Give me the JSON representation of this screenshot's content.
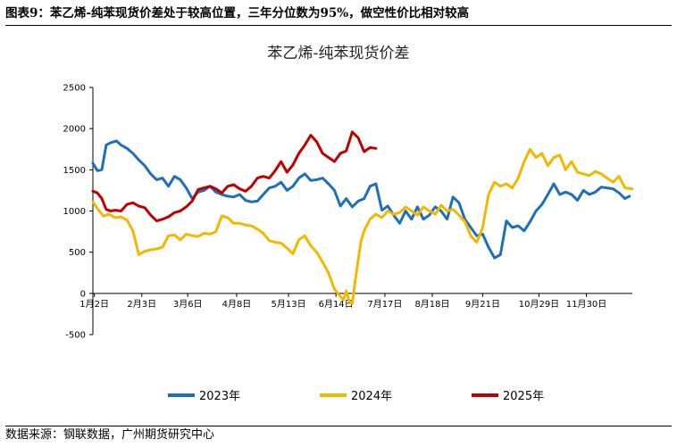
{
  "caption": "图表9：苯乙烯-纯苯现货价差处于较高位置，三年分位数为95%，做空性价比相对较高",
  "source": "数据来源：钢联数据，广州期货研究中心",
  "chart_data": {
    "type": "line",
    "title": "苯乙烯-纯苯现货价差",
    "xlabel": "",
    "ylabel": "",
    "ylim": [
      -500,
      2500
    ],
    "yticks": [
      -500,
      0,
      500,
      1000,
      1500,
      2000,
      2500
    ],
    "xlim": [
      1,
      365
    ],
    "x_tick_labels": [
      "1月2日",
      "2月3日",
      "3月6日",
      "4月8日",
      "5月13日",
      "6月14日",
      "7月17日",
      "8月18日",
      "9月21日",
      "10月29日",
      "11月30日"
    ],
    "x_tick_days": [
      2,
      34,
      65,
      98,
      133,
      165,
      198,
      230,
      264,
      302,
      334
    ],
    "grid": false,
    "legend_position": "bottom",
    "series": [
      {
        "name": "2023年",
        "color": "#1F6FB8",
        "x": [
          1,
          4,
          7,
          10,
          13,
          17,
          20,
          24,
          28,
          32,
          36,
          40,
          44,
          48,
          52,
          56,
          60,
          64,
          68,
          72,
          76,
          80,
          84,
          88,
          92,
          96,
          100,
          104,
          108,
          112,
          116,
          120,
          124,
          128,
          132,
          136,
          140,
          144,
          148,
          152,
          156,
          160,
          164,
          168,
          172,
          176,
          180,
          184,
          188,
          192,
          196,
          200,
          204,
          208,
          212,
          216,
          220,
          224,
          228,
          232,
          236,
          240,
          244,
          248,
          252,
          256,
          260,
          264,
          268,
          272,
          276,
          280,
          284,
          288,
          292,
          296,
          300,
          304,
          308,
          312,
          316,
          320,
          324,
          328,
          332,
          336,
          340,
          344,
          348,
          352,
          356,
          360,
          363
        ],
        "y": [
          1580,
          1490,
          1500,
          1800,
          1830,
          1850,
          1800,
          1760,
          1700,
          1620,
          1550,
          1450,
          1380,
          1400,
          1300,
          1420,
          1380,
          1280,
          1150,
          1230,
          1250,
          1300,
          1230,
          1200,
          1180,
          1170,
          1200,
          1130,
          1110,
          1120,
          1200,
          1280,
          1300,
          1350,
          1250,
          1300,
          1400,
          1450,
          1370,
          1380,
          1400,
          1330,
          1250,
          1060,
          1150,
          1050,
          1120,
          1150,
          1300,
          1330,
          1010,
          1060,
          950,
          850,
          1000,
          900,
          1050,
          900,
          950,
          1050,
          1000,
          900,
          1170,
          1100,
          900,
          800,
          700,
          720,
          560,
          430,
          470,
          880,
          800,
          820,
          760,
          870,
          1000,
          1080,
          1200,
          1330,
          1200,
          1230,
          1200,
          1130,
          1250,
          1200,
          1230,
          1290,
          1280,
          1270,
          1220,
          1150,
          1180
        ]
      },
      {
        "name": "2024年",
        "color": "#F2B800",
        "x": [
          1,
          4,
          8,
          12,
          16,
          20,
          24,
          28,
          32,
          36,
          40,
          44,
          48,
          52,
          56,
          60,
          64,
          68,
          72,
          76,
          80,
          84,
          88,
          92,
          96,
          100,
          104,
          108,
          112,
          116,
          120,
          124,
          128,
          132,
          136,
          140,
          144,
          148,
          152,
          156,
          160,
          164,
          168,
          170,
          172,
          174,
          176,
          178,
          180,
          182,
          184,
          188,
          192,
          196,
          200,
          204,
          208,
          212,
          216,
          220,
          224,
          228,
          232,
          236,
          240,
          244,
          248,
          252,
          256,
          260,
          264,
          268,
          272,
          276,
          280,
          284,
          288,
          292,
          296,
          300,
          304,
          308,
          312,
          316,
          320,
          324,
          328,
          332,
          336,
          340,
          344,
          348,
          352,
          356,
          360,
          365
        ],
        "y": [
          1110,
          1030,
          940,
          960,
          920,
          930,
          890,
          760,
          470,
          510,
          530,
          540,
          560,
          700,
          710,
          650,
          720,
          700,
          690,
          730,
          720,
          750,
          940,
          920,
          850,
          850,
          830,
          820,
          780,
          730,
          640,
          620,
          610,
          550,
          480,
          650,
          700,
          580,
          500,
          380,
          250,
          50,
          -40,
          -80,
          30,
          -100,
          -120,
          150,
          400,
          640,
          760,
          900,
          960,
          920,
          1000,
          960,
          980,
          1050,
          1000,
          950,
          1050,
          1000,
          960,
          1070,
          1000,
          1020,
          950,
          870,
          700,
          620,
          800,
          1200,
          1350,
          1300,
          1330,
          1280,
          1400,
          1600,
          1750,
          1650,
          1700,
          1550,
          1650,
          1680,
          1500,
          1600,
          1470,
          1450,
          1430,
          1480,
          1450,
          1400,
          1350,
          1420,
          1280,
          1270
        ]
      },
      {
        "name": "2025年",
        "color": "#C00000",
        "x": [
          1,
          4,
          7,
          10,
          13,
          16,
          20,
          24,
          28,
          32,
          36,
          40,
          44,
          48,
          52,
          56,
          60,
          64,
          68,
          72,
          76,
          80,
          84,
          88,
          92,
          96,
          100,
          104,
          108,
          112,
          116,
          120,
          124,
          128,
          132,
          136,
          140,
          144,
          148,
          152,
          156,
          160,
          164,
          168,
          172,
          176,
          180,
          184,
          188,
          192
        ],
        "y": [
          1240,
          1220,
          1150,
          1020,
          1000,
          1010,
          1000,
          1080,
          1100,
          1060,
          1040,
          950,
          880,
          900,
          930,
          980,
          1000,
          1050,
          1120,
          1260,
          1280,
          1300,
          1270,
          1220,
          1300,
          1320,
          1270,
          1240,
          1300,
          1400,
          1420,
          1400,
          1490,
          1600,
          1470,
          1560,
          1700,
          1800,
          1920,
          1840,
          1700,
          1650,
          1600,
          1700,
          1730,
          1960,
          1890,
          1720,
          1770,
          1760
        ]
      }
    ]
  }
}
